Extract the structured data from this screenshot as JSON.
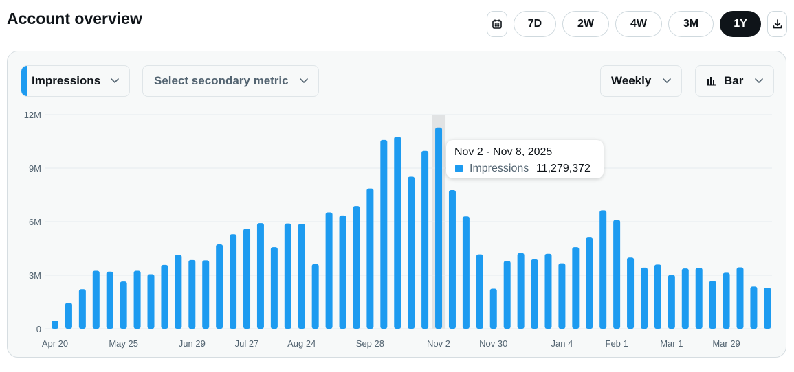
{
  "page": {
    "title": "Account overview"
  },
  "range_buttons": [
    {
      "label": "",
      "icon": "calendar-icon"
    },
    {
      "label": "7D"
    },
    {
      "label": "2W"
    },
    {
      "label": "4W"
    },
    {
      "label": "3M"
    },
    {
      "label": "1Y",
      "active": true
    },
    {
      "label": "",
      "icon": "download-icon"
    }
  ],
  "controls": {
    "primary_metric": "Impressions",
    "secondary_metric": "Select secondary metric",
    "interval": "Weekly",
    "chart_type": "Bar"
  },
  "tooltip": {
    "date_range": "Nov 2 - Nov 8, 2025",
    "series": "Impressions",
    "value": "11,279,372"
  },
  "colors": {
    "bar": "#1d9bf0",
    "highlight": "#e1e3e4",
    "grid": "#e6ebee",
    "axis_text": "#536471"
  },
  "chart_data": {
    "type": "bar",
    "series_name": "Impressions",
    "ylim": [
      0,
      12000000
    ],
    "yticks": [
      {
        "value": 0,
        "label": "0"
      },
      {
        "value": 3000000,
        "label": "3M"
      },
      {
        "value": 6000000,
        "label": "6M"
      },
      {
        "value": 9000000,
        "label": "9M"
      },
      {
        "value": 12000000,
        "label": "12M"
      }
    ],
    "x_labels": [
      {
        "index": 0,
        "label": "Apr 20"
      },
      {
        "index": 5,
        "label": "May 25"
      },
      {
        "index": 10,
        "label": "Jun 29"
      },
      {
        "index": 14,
        "label": "Jul 27"
      },
      {
        "index": 18,
        "label": "Aug 24"
      },
      {
        "index": 23,
        "label": "Sep 28"
      },
      {
        "index": 28,
        "label": "Nov 2"
      },
      {
        "index": 32,
        "label": "Nov 30"
      },
      {
        "index": 37,
        "label": "Jan 4"
      },
      {
        "index": 41,
        "label": "Feb 1"
      },
      {
        "index": 45,
        "label": "Mar 1"
      },
      {
        "index": 49,
        "label": "Mar 29"
      }
    ],
    "highlight_index": 28,
    "values": [
      450000,
      1450000,
      2220000,
      3250000,
      3200000,
      2650000,
      3250000,
      3060000,
      3580000,
      4150000,
      3850000,
      3830000,
      4730000,
      5300000,
      5610000,
      5920000,
      4570000,
      5900000,
      5880000,
      3630000,
      6520000,
      6350000,
      6880000,
      7860000,
      10580000,
      10770000,
      8520000,
      9970000,
      11279372,
      7770000,
      6300000,
      4170000,
      2250000,
      3800000,
      4240000,
      3890000,
      4200000,
      3670000,
      4570000,
      5110000,
      6640000,
      6100000,
      3990000,
      3430000,
      3600000,
      3020000,
      3380000,
      3420000,
      2680000,
      3140000,
      3440000,
      2370000,
      2310000
    ]
  }
}
